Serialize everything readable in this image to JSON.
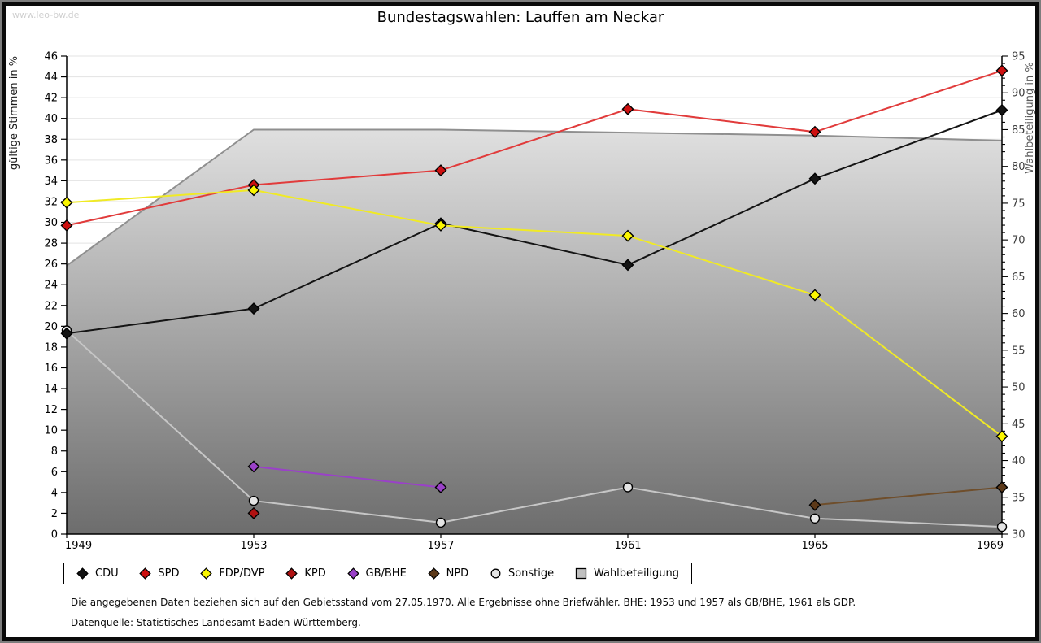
{
  "watermark": "www.leo-bw.de",
  "header": {
    "title": "Bundestagswahlen: Lauffen am Neckar"
  },
  "chart_data": {
    "type": "line",
    "title": "Bundestagswahlen: Lauffen am Neckar",
    "categories": [
      "1949",
      "1953",
      "1957",
      "1961",
      "1965",
      "1969"
    ],
    "left_axis": {
      "label": "gültige Stimmen in %",
      "min": 0,
      "max": 46,
      "step": 2
    },
    "right_axis": {
      "label": "Wahlbeteiligung in %",
      "min": 30,
      "max": 95,
      "step": 5,
      "minor_step": 1
    },
    "grid": true,
    "legend_position": "bottom",
    "series": [
      {
        "name": "CDU",
        "axis": "left",
        "marker": "diamond",
        "line_color": "#141414",
        "marker_fill": "#141414",
        "values": [
          19.3,
          21.7,
          29.9,
          25.9,
          34.2,
          40.8
        ]
      },
      {
        "name": "SPD",
        "axis": "left",
        "marker": "diamond",
        "line_color": "#e13b3b",
        "marker_fill": "#cd1010",
        "values": [
          29.7,
          33.6,
          35.0,
          40.9,
          38.7,
          44.6
        ]
      },
      {
        "name": "FDP/DVP",
        "axis": "left",
        "marker": "diamond",
        "line_color": "#f0ea25",
        "marker_fill": "#fbf600",
        "values": [
          31.9,
          33.1,
          29.7,
          28.7,
          23.0,
          9.4
        ]
      },
      {
        "name": "KPD",
        "axis": "left",
        "marker": "diamond",
        "line_color": "#b01212",
        "marker_fill": "#b01212",
        "values": [
          null,
          2.0,
          null,
          null,
          null,
          null
        ]
      },
      {
        "name": "GB/BHE",
        "axis": "left",
        "marker": "diamond",
        "line_color": "#9a41c8",
        "marker_fill": "#9a41c8",
        "values": [
          null,
          6.5,
          4.5,
          null,
          null,
          null
        ]
      },
      {
        "name": "NPD",
        "axis": "left",
        "marker": "diamond",
        "line_color": "#6f4e2b",
        "marker_fill": "#5c3919",
        "values": [
          null,
          null,
          null,
          null,
          2.8,
          4.5
        ]
      },
      {
        "name": "Sonstige",
        "axis": "left",
        "marker": "circle",
        "line_color": "#c6c6c6",
        "marker_fill": "#e4e4e4",
        "values": [
          19.6,
          3.2,
          1.1,
          4.5,
          1.5,
          0.7
        ]
      },
      {
        "name": "Wahlbeteiligung",
        "axis": "right",
        "marker": "square",
        "type": "area",
        "line_color": "#8f8f8f",
        "marker_fill": "#c0c0c0",
        "area_top_color": "#f4f4f4",
        "area_bottom_color": "#6d6d6d",
        "values": [
          66.5,
          85.0,
          85.0,
          84.6,
          84.2,
          83.5
        ]
      }
    ],
    "colors": {
      "grid": "#e3e3e3",
      "axis": "#000000",
      "right_tick_text": "#3d3d3d",
      "right_axis_title": "#5a5a5a"
    }
  },
  "footnotes": {
    "line1": "Die angegebenen Daten beziehen sich auf den Gebietsstand vom 27.05.1970. Alle Ergebnisse ohne Briefwähler. BHE: 1953 und 1957 als GB/BHE, 1961 als GDP.",
    "line2": "Datenquelle: Statistisches Landesamt Baden-Württemberg."
  }
}
